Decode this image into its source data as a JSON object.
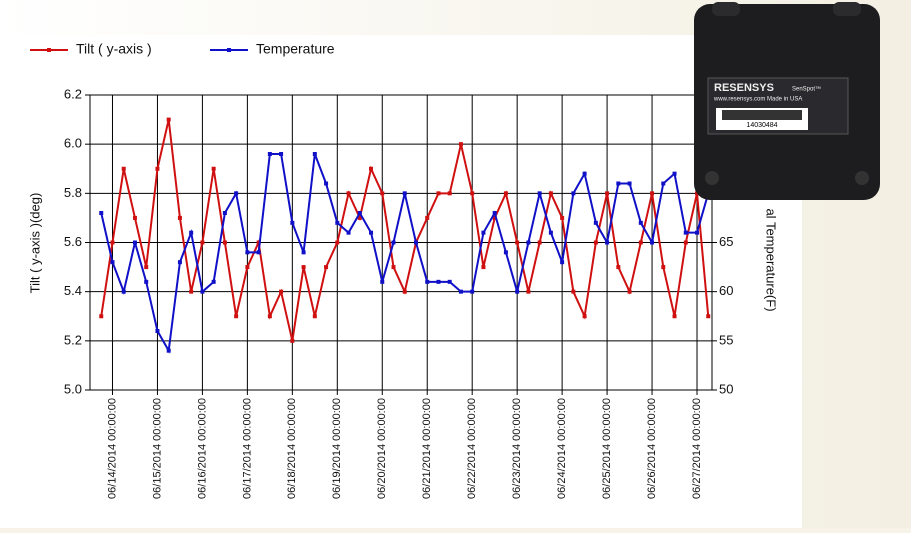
{
  "chart_data": {
    "type": "line",
    "y_label": "Tilt ( y-axis )(deg)",
    "y2_label": "al Temperature(F)",
    "x": [
      "06/13/2014 18:00:00",
      "06/14/2014 00:00:00",
      "06/14/2014 06:00:00",
      "06/14/2014 12:00:00",
      "06/14/2014 18:00:00",
      "06/15/2014 00:00:00",
      "06/15/2014 06:00:00",
      "06/15/2014 12:00:00",
      "06/15/2014 18:00:00",
      "06/16/2014 00:00:00",
      "06/16/2014 06:00:00",
      "06/16/2014 12:00:00",
      "06/16/2014 18:00:00",
      "06/17/2014 00:00:00",
      "06/17/2014 06:00:00",
      "06/17/2014 12:00:00",
      "06/17/2014 18:00:00",
      "06/18/2014 00:00:00",
      "06/18/2014 06:00:00",
      "06/18/2014 12:00:00",
      "06/18/2014 18:00:00",
      "06/19/2014 00:00:00",
      "06/19/2014 06:00:00",
      "06/19/2014 12:00:00",
      "06/19/2014 18:00:00",
      "06/20/2014 00:00:00",
      "06/20/2014 06:00:00",
      "06/20/2014 12:00:00",
      "06/20/2014 18:00:00",
      "06/21/2014 00:00:00",
      "06/21/2014 06:00:00",
      "06/21/2014 12:00:00",
      "06/21/2014 18:00:00",
      "06/22/2014 00:00:00",
      "06/22/2014 06:00:00",
      "06/22/2014 12:00:00",
      "06/22/2014 18:00:00",
      "06/23/2014 00:00:00",
      "06/23/2014 06:00:00",
      "06/23/2014 12:00:00",
      "06/23/2014 18:00:00",
      "06/24/2014 00:00:00",
      "06/24/2014 06:00:00",
      "06/24/2014 12:00:00",
      "06/24/2014 18:00:00",
      "06/25/2014 00:00:00",
      "06/25/2014 06:00:00",
      "06/25/2014 12:00:00",
      "06/25/2014 18:00:00",
      "06/26/2014 00:00:00",
      "06/26/2014 06:00:00",
      "06/26/2014 12:00:00",
      "06/26/2014 18:00:00",
      "06/27/2014 00:00:00",
      "06/27/2014 06:00:00"
    ],
    "series": [
      {
        "name": "Tilt ( y-axis )",
        "color": "#d01010",
        "axis": "y",
        "values": [
          5.3,
          5.6,
          5.9,
          5.7,
          5.5,
          5.9,
          6.1,
          5.7,
          5.4,
          5.6,
          5.9,
          5.6,
          5.3,
          5.5,
          5.6,
          5.3,
          5.4,
          5.2,
          5.5,
          5.3,
          5.5,
          5.6,
          5.8,
          5.7,
          5.9,
          5.8,
          5.5,
          5.4,
          5.6,
          5.7,
          5.8,
          5.8,
          6.0,
          5.8,
          5.5,
          5.7,
          5.8,
          5.6,
          5.4,
          5.6,
          5.8,
          5.7,
          5.4,
          5.3,
          5.6,
          5.8,
          5.5,
          5.4,
          5.6,
          5.8,
          5.5,
          5.3,
          5.6,
          5.8,
          5.3
        ]
      },
      {
        "name": "Temperature",
        "color": "#1010c8",
        "axis": "y2",
        "values": [
          68,
          63,
          60,
          65,
          61,
          56,
          54,
          63,
          66,
          60,
          61,
          68,
          70,
          64,
          64,
          74,
          74,
          67,
          64,
          74,
          71,
          67,
          66,
          68,
          66,
          61,
          65,
          70,
          65,
          61,
          61,
          61,
          60,
          60,
          66,
          68,
          64,
          60,
          65,
          70,
          66,
          63,
          70,
          72,
          67,
          65,
          71,
          71,
          67,
          65,
          71,
          72,
          66,
          66,
          70
        ]
      }
    ],
    "xlim": [
      "06/13/2014 12:00:00",
      "06/27/2014 08:00:00"
    ],
    "xticks": [
      "06/14/2014 00:00:00",
      "06/15/2014 00:00:00",
      "06/16/2014 00:00:00",
      "06/17/2014 00:00:00",
      "06/18/2014 00:00:00",
      "06/19/2014 00:00:00",
      "06/20/2014 00:00:00",
      "06/21/2014 00:00:00",
      "06/22/2014 00:00:00",
      "06/23/2014 00:00:00",
      "06/24/2014 00:00:00",
      "06/25/2014 00:00:00",
      "06/26/2014 00:00:00",
      "06/27/2014 00:00:00"
    ],
    "ylim": [
      5.0,
      6.2
    ],
    "yticks": [
      {
        "value": 5.0,
        "label": "5.0"
      },
      5.2,
      5.4,
      5.6,
      5.8,
      {
        "value": 6.0,
        "label": "6.0"
      },
      6.2
    ],
    "y2lim": [
      50,
      80
    ],
    "y2ticks": [
      50,
      55,
      60,
      65
    ],
    "grid": true
  },
  "device": {
    "brand": "RESENSYS",
    "model": "SenSpot™",
    "url": "www.resensys.com Made in USA",
    "serial": "14030484"
  }
}
